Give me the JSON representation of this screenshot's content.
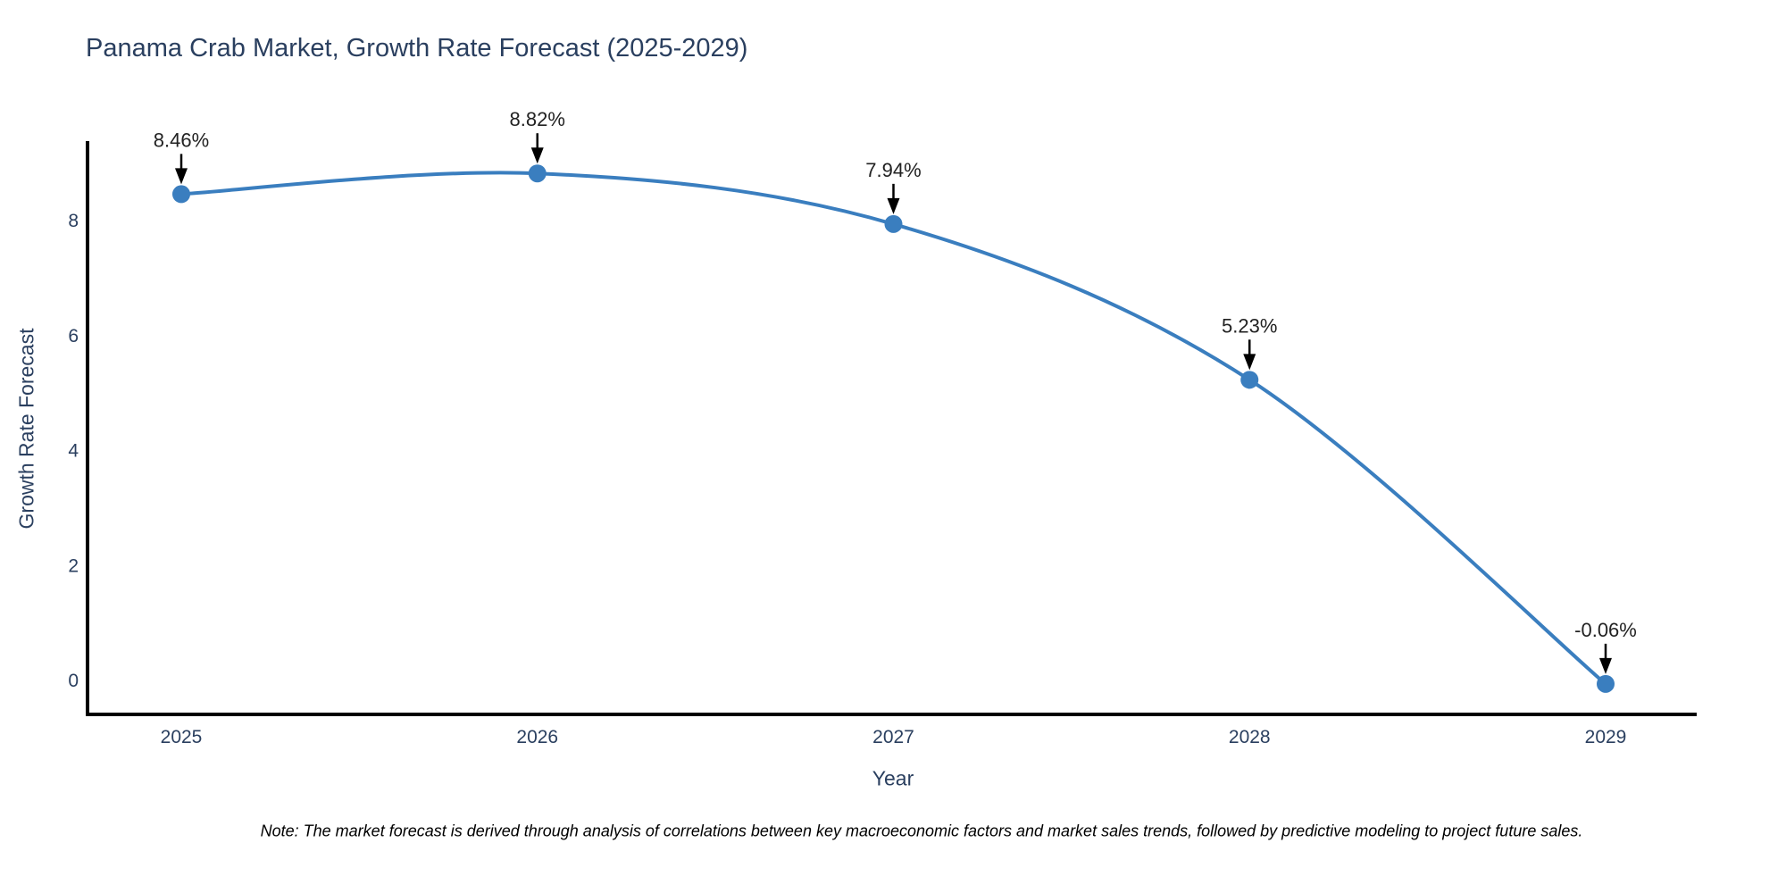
{
  "chart_data": {
    "type": "line",
    "title": "Panama Crab Market, Growth Rate Forecast (2025-2029)",
    "xlabel": "Year",
    "ylabel": "Growth Rate Forecast",
    "categories": [
      "2025",
      "2026",
      "2027",
      "2028",
      "2029"
    ],
    "values": [
      8.46,
      8.82,
      7.94,
      5.23,
      -0.06
    ],
    "point_labels": [
      "8.46%",
      "8.82%",
      "7.94%",
      "5.23%",
      "-0.06%"
    ],
    "yticks": [
      0,
      2,
      4,
      6,
      8
    ],
    "ylim": [
      -0.6,
      9.35
    ],
    "grid": false,
    "legend": "none",
    "line_shape": "spline",
    "colors": {
      "line": "#3a7ebf",
      "marker": "#3a7ebf",
      "axis": "#000000",
      "tick_label": "#2a3f5f",
      "title": "#2a3f5f",
      "annotation_text": "#222222",
      "annotation_arrow": "#000000"
    },
    "note": "Note: The market forecast is derived through analysis of correlations between key macroeconomic factors and market sales trends, followed by predictive modeling to project future sales."
  }
}
